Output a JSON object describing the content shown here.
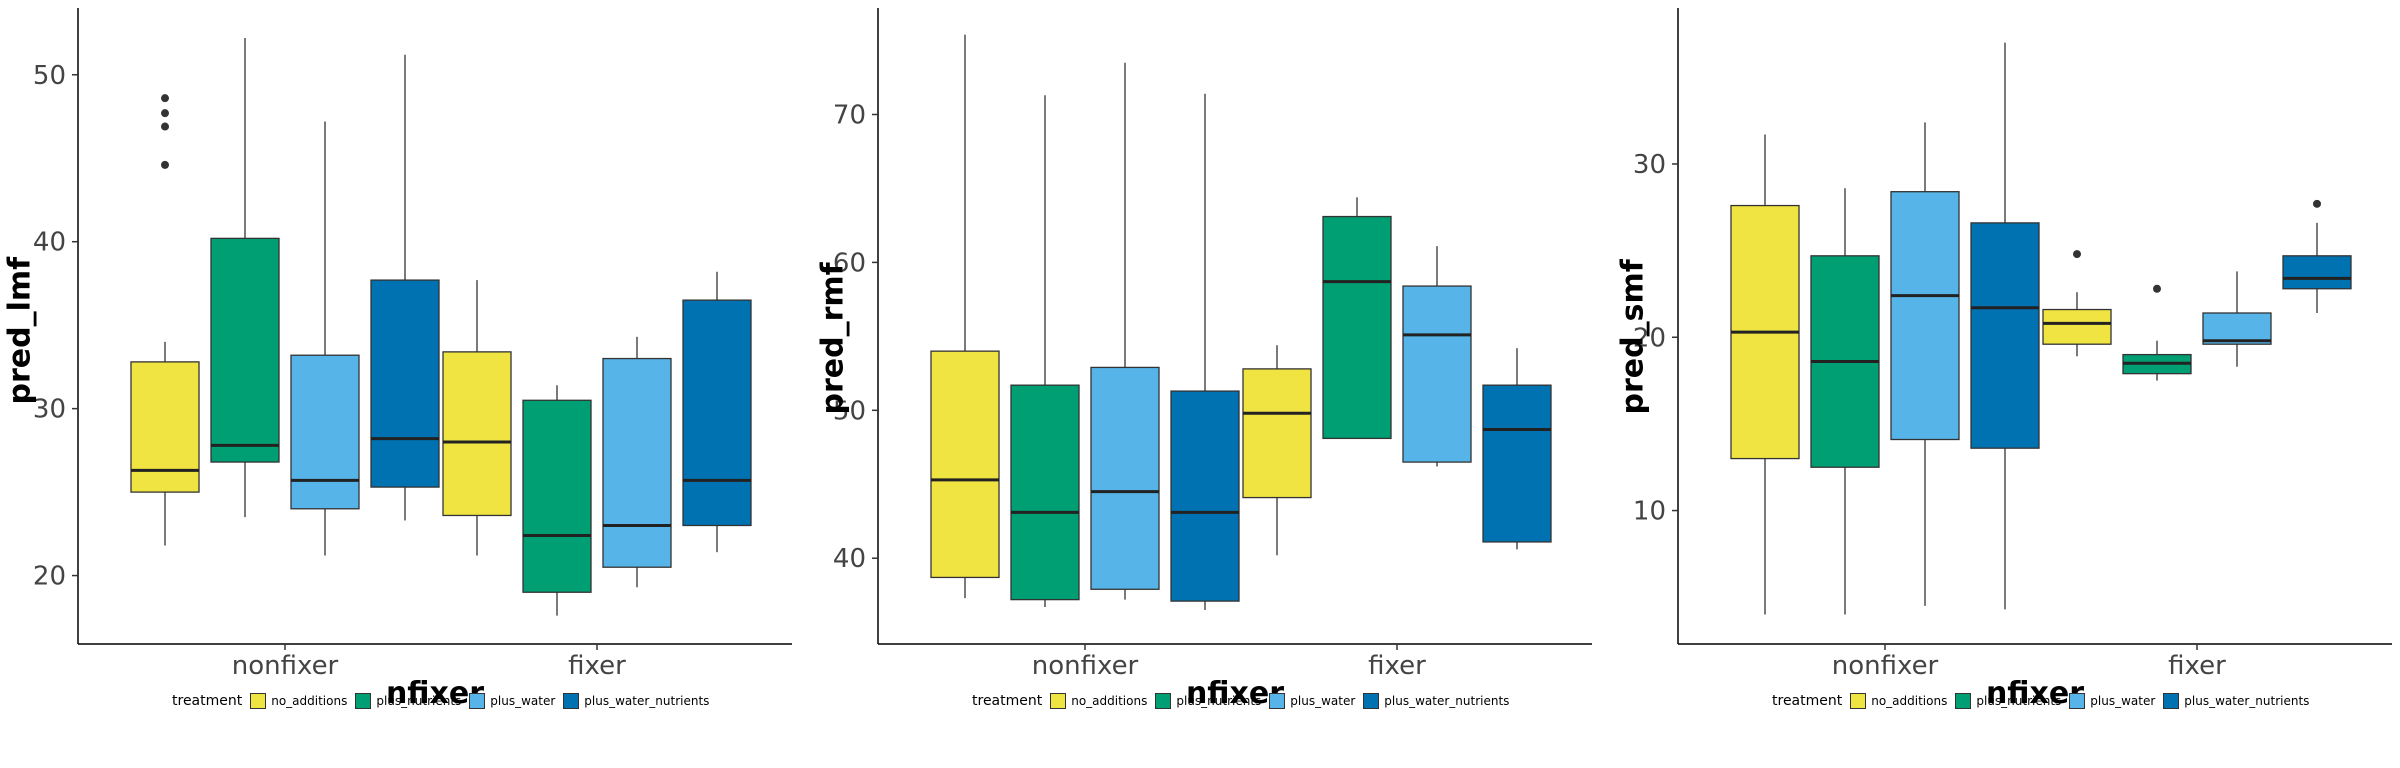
{
  "legend": {
    "title": "treatment",
    "entries": [
      "no_additions",
      "plus_nutrients",
      "plus_water",
      "plus_water_nutrients"
    ]
  },
  "colors": {
    "no_additions": "#F0E442",
    "plus_nutrients": "#009E73",
    "plus_water": "#56B4E9",
    "plus_water_nutrients": "#0072B2"
  },
  "chart_data": [
    {
      "type": "boxplot",
      "xlabel": "nfixer",
      "ylabel": "pred_lmf",
      "categories": [
        "nonfixer",
        "fixer"
      ],
      "ylim": [
        15.9,
        54.0
      ],
      "yticks": [
        20,
        30,
        40,
        50
      ],
      "grid": false,
      "legend_position": "bottom",
      "series": [
        {
          "name": "no_additions",
          "boxes": [
            {
              "min": 21.8,
              "q1": 25.0,
              "median": 26.3,
              "q3": 32.8,
              "max": 34.0,
              "outliers": [
                44.6,
                46.9,
                47.7,
                48.6
              ]
            },
            {
              "min": 21.2,
              "q1": 23.6,
              "median": 28.0,
              "q3": 33.4,
              "max": 37.7,
              "outliers": []
            }
          ]
        },
        {
          "name": "plus_nutrients",
          "boxes": [
            {
              "min": 23.5,
              "q1": 26.8,
              "median": 27.8,
              "q3": 40.2,
              "max": 52.2,
              "outliers": []
            },
            {
              "min": 17.6,
              "q1": 19.0,
              "median": 22.4,
              "q3": 30.5,
              "max": 31.4,
              "outliers": []
            }
          ]
        },
        {
          "name": "plus_water",
          "boxes": [
            {
              "min": 21.2,
              "q1": 24.0,
              "median": 25.7,
              "q3": 33.2,
              "max": 47.2,
              "outliers": []
            },
            {
              "min": 19.3,
              "q1": 20.5,
              "median": 23.0,
              "q3": 33.0,
              "max": 34.3,
              "outliers": []
            }
          ]
        },
        {
          "name": "plus_water_nutrients",
          "boxes": [
            {
              "min": 23.3,
              "q1": 25.3,
              "median": 28.2,
              "q3": 37.7,
              "max": 51.2,
              "outliers": []
            },
            {
              "min": 21.4,
              "q1": 23.0,
              "median": 25.7,
              "q3": 36.5,
              "max": 38.2,
              "outliers": []
            }
          ]
        }
      ]
    },
    {
      "type": "boxplot",
      "xlabel": "nfixer",
      "ylabel": "pred_rmf",
      "categories": [
        "nonfixer",
        "fixer"
      ],
      "ylim": [
        34.2,
        77.2
      ],
      "yticks": [
        40,
        50,
        60,
        70
      ],
      "grid": false,
      "legend_position": "bottom",
      "series": [
        {
          "name": "no_additions",
          "boxes": [
            {
              "min": 37.3,
              "q1": 38.7,
              "median": 45.3,
              "q3": 54.0,
              "max": 75.4,
              "outliers": []
            },
            {
              "min": 40.2,
              "q1": 44.1,
              "median": 49.8,
              "q3": 52.8,
              "max": 54.4,
              "outliers": []
            }
          ]
        },
        {
          "name": "plus_nutrients",
          "boxes": [
            {
              "min": 36.7,
              "q1": 37.2,
              "median": 43.1,
              "q3": 51.7,
              "max": 71.3,
              "outliers": []
            },
            {
              "min": 48.1,
              "q1": 48.1,
              "median": 58.7,
              "q3": 63.1,
              "max": 64.4,
              "outliers": []
            }
          ]
        },
        {
          "name": "plus_water",
          "boxes": [
            {
              "min": 37.2,
              "q1": 37.9,
              "median": 44.5,
              "q3": 52.9,
              "max": 73.5,
              "outliers": []
            },
            {
              "min": 46.2,
              "q1": 46.5,
              "median": 55.1,
              "q3": 58.4,
              "max": 61.1,
              "outliers": []
            }
          ]
        },
        {
          "name": "plus_water_nutrients",
          "boxes": [
            {
              "min": 36.5,
              "q1": 37.1,
              "median": 43.1,
              "q3": 51.3,
              "max": 71.4,
              "outliers": []
            },
            {
              "min": 40.6,
              "q1": 41.1,
              "median": 48.7,
              "q3": 51.7,
              "max": 54.2,
              "outliers": []
            }
          ]
        }
      ]
    },
    {
      "type": "boxplot",
      "xlabel": "nfixer",
      "ylabel": "pred_smf",
      "categories": [
        "nonfixer",
        "fixer"
      ],
      "ylim": [
        2.3,
        39.0
      ],
      "yticks": [
        10,
        20,
        30
      ],
      "grid": false,
      "legend_position": "bottom",
      "series": [
        {
          "name": "no_additions",
          "boxes": [
            {
              "min": 4.0,
              "q1": 13.0,
              "median": 20.3,
              "q3": 27.6,
              "max": 31.7,
              "outliers": []
            },
            {
              "min": 18.9,
              "q1": 19.6,
              "median": 20.8,
              "q3": 21.6,
              "max": 22.6,
              "outliers": [
                24.8
              ]
            }
          ]
        },
        {
          "name": "plus_nutrients",
          "boxes": [
            {
              "min": 4.0,
              "q1": 12.5,
              "median": 18.6,
              "q3": 24.7,
              "max": 28.6,
              "outliers": []
            },
            {
              "min": 17.5,
              "q1": 17.9,
              "median": 18.5,
              "q3": 19.0,
              "max": 19.8,
              "outliers": [
                22.8
              ]
            }
          ]
        },
        {
          "name": "plus_water",
          "boxes": [
            {
              "min": 4.5,
              "q1": 14.1,
              "median": 22.4,
              "q3": 28.4,
              "max": 32.4,
              "outliers": []
            },
            {
              "min": 18.3,
              "q1": 19.6,
              "median": 19.8,
              "q3": 21.4,
              "max": 23.8,
              "outliers": []
            }
          ]
        },
        {
          "name": "plus_water_nutrients",
          "boxes": [
            {
              "min": 4.3,
              "q1": 13.6,
              "median": 21.7,
              "q3": 26.6,
              "max": 37.0,
              "outliers": []
            },
            {
              "min": 21.4,
              "q1": 22.8,
              "median": 23.4,
              "q3": 24.7,
              "max": 26.6,
              "outliers": [
                27.7
              ]
            }
          ]
        }
      ]
    }
  ]
}
